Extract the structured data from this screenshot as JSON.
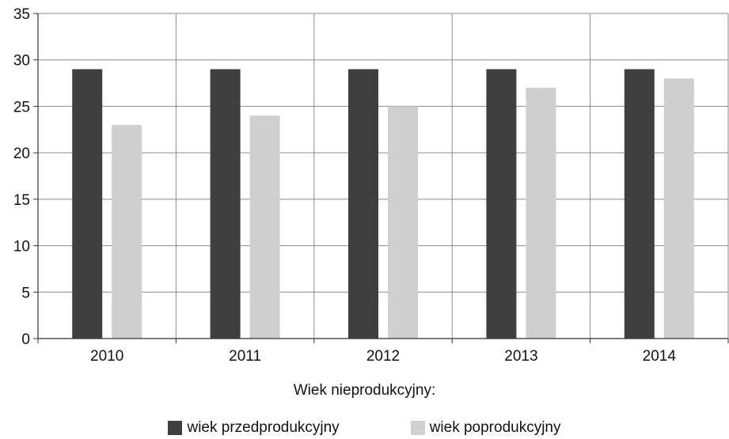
{
  "colors": {
    "series_0": "#3f3f3f",
    "series_1": "#d0cecf",
    "grid": "#8a8a8a",
    "axis": "#333333"
  },
  "chart_data": {
    "type": "bar",
    "categories": [
      "2010",
      "2011",
      "2012",
      "2013",
      "2014"
    ],
    "series": [
      {
        "name": "wiek przedprodukcyjny",
        "values": [
          29,
          29,
          29,
          29,
          29
        ]
      },
      {
        "name": "wiek poprodukcyjny",
        "values": [
          23,
          24,
          25,
          27,
          28
        ]
      }
    ],
    "ylim": [
      0,
      35
    ],
    "yticks": [
      0,
      5,
      10,
      15,
      20,
      25,
      30,
      35
    ],
    "grid": true,
    "legend_title": "Wiek nieprodukcyjny:",
    "legend_position": "bottom"
  }
}
